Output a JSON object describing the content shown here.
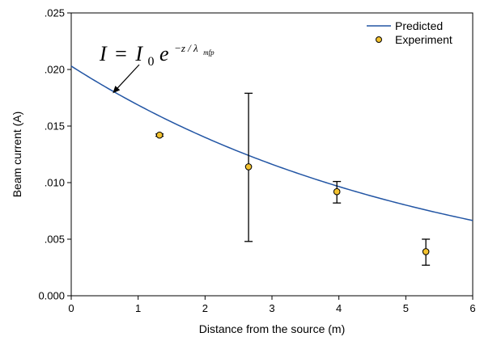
{
  "chart_data": {
    "type": "scatter",
    "xlabel": "Distance from the source (m)",
    "ylabel": "Beam current (A)",
    "xlim": [
      0,
      6
    ],
    "ylim": [
      0,
      0.025
    ],
    "x_ticks": [
      0,
      1,
      2,
      3,
      4,
      5,
      6
    ],
    "x_tick_labels": [
      "0",
      "1",
      "2",
      "3",
      "4",
      "5",
      "6"
    ],
    "y_ticks": [
      0,
      0.005,
      0.01,
      0.015,
      0.02,
      0.025
    ],
    "y_tick_labels": [
      "0.000",
      ".005",
      ".010",
      ".015",
      ".020",
      ".025"
    ],
    "grid": false,
    "legend_position": "top-right",
    "series": [
      {
        "name": "Predicted",
        "kind": "line",
        "color": "#2255a4",
        "model": "exponential",
        "I0": 0.0203,
        "lambda_mfp": 5.38,
        "x": [
          0,
          0.5,
          1,
          1.5,
          2,
          2.5,
          3,
          3.5,
          4,
          4.5,
          5,
          5.5,
          6
        ],
        "y": [
          0.0203,
          0.0185,
          0.0168,
          0.0154,
          0.014,
          0.0128,
          0.0116,
          0.0106,
          0.0097,
          0.0088,
          0.008,
          0.0073,
          0.0067
        ]
      },
      {
        "name": "Experiment",
        "kind": "points",
        "color": "#f2c12e",
        "edge_color": "#000000",
        "points": [
          {
            "x": 1.32,
            "y": 0.0142,
            "yerr_low": 0.0141,
            "yerr_high": 0.0143
          },
          {
            "x": 2.65,
            "y": 0.0114,
            "yerr_low": 0.0048,
            "yerr_high": 0.0179
          },
          {
            "x": 3.97,
            "y": 0.0092,
            "yerr_low": 0.0082,
            "yerr_high": 0.0101
          },
          {
            "x": 5.3,
            "y": 0.0039,
            "yerr_low": 0.0027,
            "yerr_high": 0.005
          }
        ]
      }
    ],
    "annotation": {
      "text_I": "I",
      "text_eq": "=",
      "text_I0": "I",
      "text_sub0": "0",
      "text_e": "e",
      "text_exp": "−z / λ",
      "text_mfp": "mfp",
      "arrow_target": {
        "x": 0.62,
        "y": 0.0179
      }
    }
  }
}
